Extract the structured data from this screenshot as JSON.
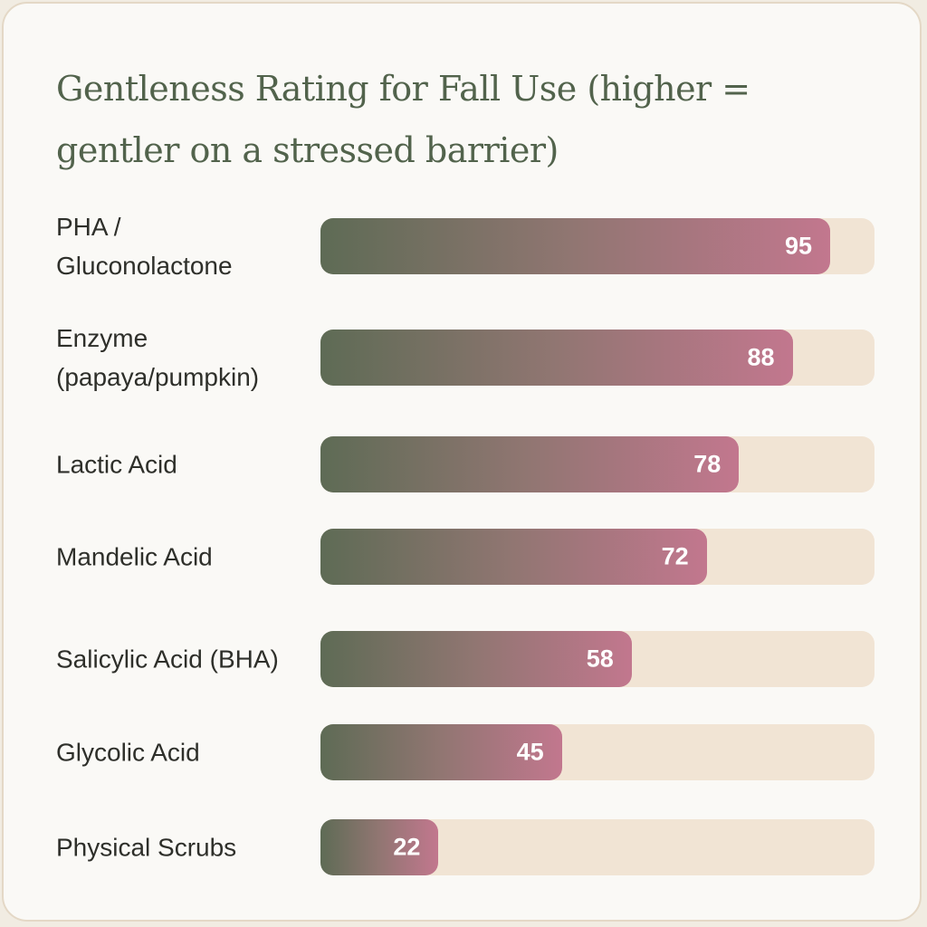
{
  "chart_data": {
    "type": "bar",
    "orientation": "horizontal",
    "title": "Gentleness Rating for Fall Use (higher = gentler on a stressed barrier)",
    "categories": [
      "PHA / Gluconolactone",
      "Enzyme (papaya/pumpkin)",
      "Lactic Acid",
      "Mandelic Acid",
      "Salicylic Acid (BHA)",
      "Glycolic Acid",
      "Physical Scrubs"
    ],
    "values": [
      95,
      88,
      78,
      72,
      58,
      45,
      22
    ],
    "xlim": [
      0,
      100
    ],
    "grid": false,
    "legend": "none",
    "data_labels": "inside-end",
    "colors": {
      "bar_gradient_start": "#5e6b55",
      "bar_gradient_mid": "#917672",
      "bar_gradient_end": "#c2778e",
      "track": "#f1e4d4",
      "title": "#52634c",
      "label": "#2e2f2a",
      "value_label": "#ffffff"
    }
  }
}
